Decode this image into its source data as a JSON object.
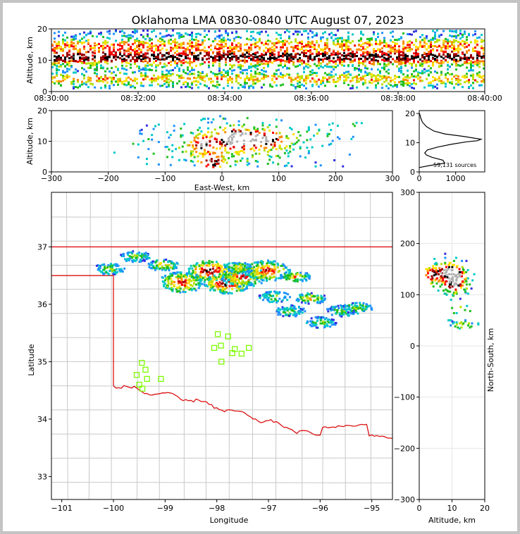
{
  "title": "Oklahoma LMA 0830-0840 UTC August 07, 2023",
  "colors": {
    "border": "#dd1111",
    "county": "#c8c8c8",
    "station": "#7cfc00",
    "frame_bg": "#c4c4c4"
  },
  "chart_data": [
    {
      "type": "heatmap",
      "name": "time-altitude",
      "ylabel": "Altitude, km",
      "xlim": [
        "08:30:00",
        "08:40:00"
      ],
      "ylim": [
        0,
        20
      ],
      "x_ticks": [
        "08:30:00",
        "08:32:00",
        "08:34:00",
        "08:36:00",
        "08:38:00",
        "08:40:00"
      ],
      "y_ticks": [
        "0",
        "10",
        "20"
      ],
      "density_core_altitudes_km": [
        4,
        11,
        15
      ]
    },
    {
      "type": "heatmap",
      "name": "east-west-altitude",
      "xlabel": "East-West, km",
      "ylabel": "Altitude, km",
      "xlim": [
        -300,
        300
      ],
      "ylim": [
        0,
        20
      ],
      "x_ticks": [
        "−300",
        "−200",
        "−100",
        "0",
        "100",
        "200",
        "300"
      ],
      "y_ticks": [
        "0",
        "10",
        "20"
      ],
      "cores": [
        {
          "x": 15,
          "y": 11,
          "level": "max"
        },
        {
          "x": 40,
          "y": 11,
          "level": "high"
        },
        {
          "x": -20,
          "y": 3,
          "level": "high"
        },
        {
          "x": 80,
          "y": 11,
          "level": "high"
        },
        {
          "x": -35,
          "y": 9,
          "level": "mid"
        }
      ]
    },
    {
      "type": "line",
      "name": "altitude-histogram",
      "annotation": "59,131 sources",
      "xlim": [
        0,
        1800
      ],
      "ylim": [
        0,
        21
      ],
      "x_ticks": [
        "0",
        "1000"
      ],
      "y_ticks": [
        "0",
        "10",
        "20"
      ],
      "x": [
        0,
        300,
        700,
        650,
        350,
        200,
        150,
        220,
        500,
        900,
        1300,
        1600,
        1700,
        1200,
        700,
        400,
        200,
        90,
        40,
        10
      ],
      "y": [
        1.5,
        2.2,
        3,
        4,
        5,
        5.8,
        6.5,
        7.5,
        8.5,
        9.5,
        10.3,
        10.7,
        11.2,
        12.2,
        13,
        14,
        15.5,
        17,
        18.5,
        20
      ]
    },
    {
      "type": "scatter",
      "name": "plan-view-map",
      "xlabel": "Longitude",
      "ylabel": "Latitude",
      "xlim": [
        -101.2,
        -94.6
      ],
      "ylim": [
        32.6,
        37.95
      ],
      "x_ticks": [
        "−101",
        "−100",
        "−99",
        "−98",
        "−97",
        "−96",
        "−95"
      ],
      "y_ticks": [
        "33",
        "34",
        "35",
        "36",
        "37"
      ],
      "stations": [
        {
          "lon": -99.45,
          "lat": 34.98
        },
        {
          "lon": -99.38,
          "lat": 34.86
        },
        {
          "lon": -99.55,
          "lat": 34.77
        },
        {
          "lon": -99.35,
          "lat": 34.7
        },
        {
          "lon": -99.08,
          "lat": 34.7
        },
        {
          "lon": -99.5,
          "lat": 34.6
        },
        {
          "lon": -99.44,
          "lat": 34.53
        },
        {
          "lon": -97.98,
          "lat": 35.48
        },
        {
          "lon": -97.78,
          "lat": 35.44
        },
        {
          "lon": -97.92,
          "lat": 35.28
        },
        {
          "lon": -98.05,
          "lat": 35.24
        },
        {
          "lon": -97.65,
          "lat": 35.22
        },
        {
          "lon": -97.38,
          "lat": 35.24
        },
        {
          "lon": -97.7,
          "lat": 35.15
        },
        {
          "lon": -97.52,
          "lat": 35.14
        },
        {
          "lon": -97.91,
          "lat": 35.0
        }
      ],
      "density_cells": [
        {
          "lon": -98.15,
          "lat": 36.6,
          "level": "max"
        },
        {
          "lon": -97.82,
          "lat": 36.38,
          "level": "max"
        },
        {
          "lon": -97.5,
          "lat": 36.5,
          "level": "high"
        },
        {
          "lon": -98.7,
          "lat": 36.4,
          "level": "high"
        },
        {
          "lon": -97.05,
          "lat": 36.6,
          "level": "high"
        },
        {
          "lon": -99.05,
          "lat": 36.7,
          "level": "mid"
        },
        {
          "lon": -96.5,
          "lat": 36.5,
          "level": "mid"
        },
        {
          "lon": -97.6,
          "lat": 36.65,
          "level": "mid"
        },
        {
          "lon": -96.2,
          "lat": 36.12,
          "level": "mid"
        },
        {
          "lon": -96.6,
          "lat": 35.9,
          "level": "low"
        },
        {
          "lon": -96.0,
          "lat": 35.7,
          "level": "low"
        },
        {
          "lon": -95.6,
          "lat": 35.9,
          "level": "low"
        },
        {
          "lon": -95.3,
          "lat": 35.95,
          "level": "low"
        },
        {
          "lon": -99.6,
          "lat": 36.85,
          "level": "low"
        },
        {
          "lon": -100.1,
          "lat": 36.63,
          "level": "low"
        },
        {
          "lon": -96.9,
          "lat": 36.15,
          "level": "low"
        }
      ]
    },
    {
      "type": "heatmap",
      "name": "north-south-altitude",
      "xlabel": "Altitude, km",
      "ylabel": "North-South, km",
      "xlim": [
        0,
        20
      ],
      "ylim": [
        -300,
        300
      ],
      "x_ticks": [
        "0",
        "10",
        "20"
      ],
      "y_ticks": [
        "−300",
        "−200",
        "−100",
        "0",
        "100",
        "200",
        "300"
      ],
      "cores": [
        {
          "x": 10.5,
          "y": 138,
          "level": "max"
        },
        {
          "x": 3.5,
          "y": 138,
          "level": "high"
        },
        {
          "x": 10.5,
          "y": 118,
          "level": "high"
        },
        {
          "x": 8,
          "y": 150,
          "level": "mid"
        },
        {
          "x": 12,
          "y": 70,
          "level": "low"
        },
        {
          "x": 13,
          "y": 42,
          "level": "low"
        }
      ]
    }
  ]
}
